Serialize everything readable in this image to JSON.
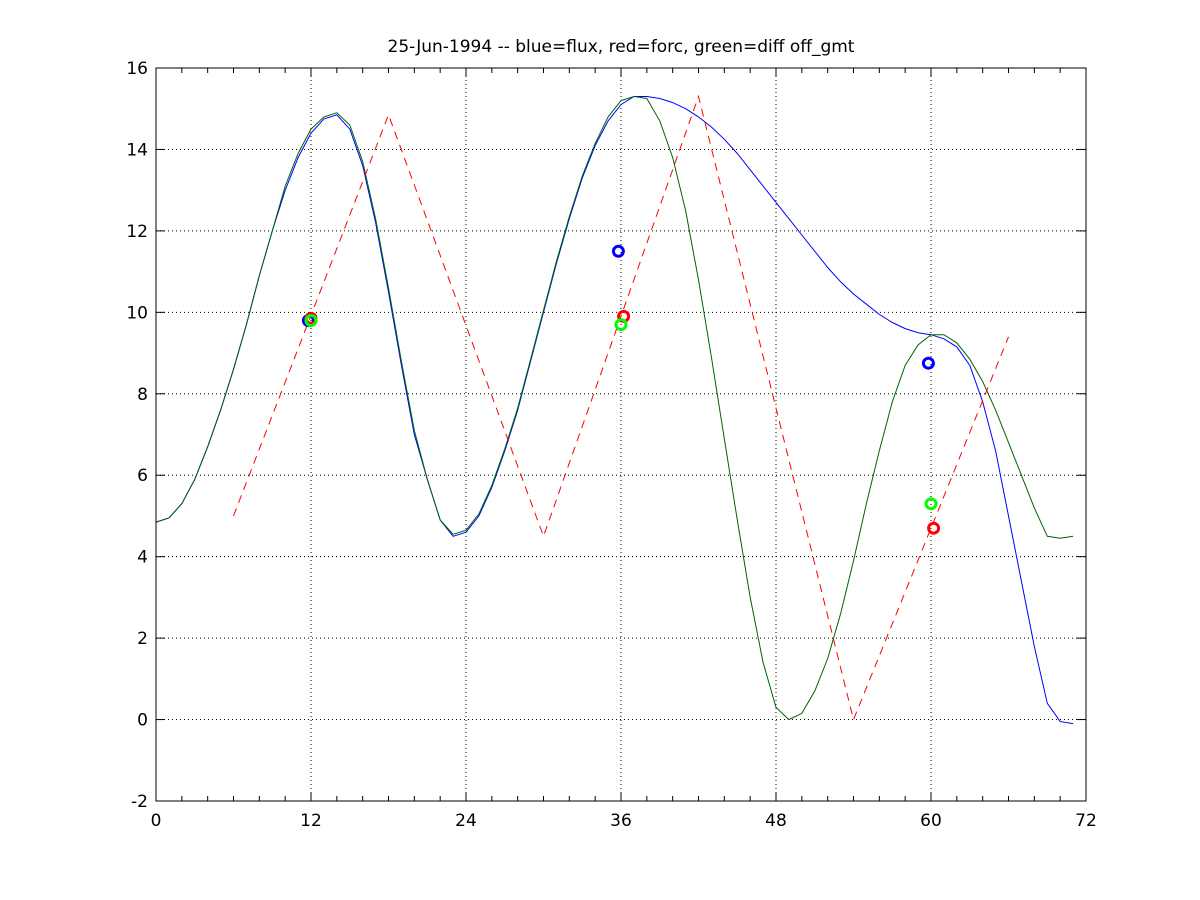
{
  "chart_data": {
    "type": "line",
    "title": "25-Jun-1994 -- blue=flux, red=forc, green=diff off_gmt",
    "xlim": [
      0,
      72
    ],
    "ylim": [
      -2,
      16
    ],
    "xticks": [
      0,
      12,
      24,
      36,
      48,
      60,
      72
    ],
    "yticks": [
      -2,
      0,
      2,
      4,
      6,
      8,
      10,
      12,
      14,
      16
    ],
    "grid": true,
    "series": [
      {
        "name": "flux",
        "color": "#0000ff",
        "style": "solid",
        "x": [
          0,
          1,
          2,
          3,
          4,
          5,
          6,
          7,
          8,
          9,
          10,
          11,
          12,
          13,
          14,
          15,
          16,
          17,
          18,
          19,
          20,
          21,
          22,
          23,
          24,
          25,
          26,
          27,
          28,
          29,
          30,
          31,
          32,
          33,
          34,
          35,
          36,
          37,
          38,
          39,
          40,
          41,
          42,
          43,
          44,
          45,
          46,
          47,
          48,
          49,
          50,
          51,
          52,
          53,
          54,
          55,
          56,
          57,
          58,
          59,
          60,
          61,
          62,
          63,
          64,
          65,
          66,
          67,
          68,
          69,
          70,
          71
        ],
        "y": [
          4.85,
          4.95,
          5.3,
          5.9,
          6.7,
          7.6,
          8.6,
          9.7,
          10.9,
          12.0,
          13.0,
          13.8,
          14.4,
          14.75,
          14.85,
          14.5,
          13.6,
          12.2,
          10.5,
          8.7,
          7.0,
          5.9,
          4.9,
          4.5,
          4.6,
          5.0,
          5.7,
          6.6,
          7.6,
          8.8,
          10.0,
          11.2,
          12.3,
          13.3,
          14.1,
          14.7,
          15.1,
          15.3,
          15.3,
          15.25,
          15.15,
          15.0,
          14.8,
          14.55,
          14.25,
          13.9,
          13.5,
          13.1,
          12.7,
          12.3,
          11.9,
          11.5,
          11.1,
          10.75,
          10.45,
          10.2,
          9.95,
          9.75,
          9.6,
          9.5,
          9.45,
          9.35,
          9.15,
          8.7,
          7.8,
          6.6,
          5.0,
          3.4,
          1.8,
          0.4,
          -0.05,
          -0.1
        ]
      },
      {
        "name": "diff",
        "color": "#006400",
        "style": "solid",
        "x": [
          0,
          1,
          2,
          3,
          4,
          5,
          6,
          7,
          8,
          9,
          10,
          11,
          12,
          13,
          14,
          15,
          16,
          17,
          18,
          19,
          20,
          21,
          22,
          23,
          24,
          25,
          26,
          27,
          28,
          29,
          30,
          31,
          32,
          33,
          34,
          35,
          36,
          37,
          38,
          39,
          40,
          41,
          42,
          43,
          44,
          45,
          46,
          47,
          48,
          49,
          50,
          51,
          52,
          53,
          54,
          55,
          56,
          57,
          58,
          59,
          60,
          61,
          62,
          63,
          64,
          65,
          66,
          67,
          68,
          69,
          70,
          71
        ],
        "y": [
          4.85,
          4.95,
          5.3,
          5.9,
          6.7,
          7.6,
          8.6,
          9.7,
          10.9,
          12.0,
          13.1,
          13.9,
          14.5,
          14.8,
          14.9,
          14.6,
          13.7,
          12.3,
          10.6,
          8.8,
          7.1,
          5.9,
          4.9,
          4.55,
          4.65,
          5.05,
          5.75,
          6.65,
          7.65,
          8.85,
          10.05,
          11.25,
          12.35,
          13.35,
          14.15,
          14.8,
          15.2,
          15.3,
          15.25,
          14.7,
          13.8,
          12.5,
          10.8,
          8.9,
          6.9,
          4.9,
          3.0,
          1.4,
          0.3,
          0.0,
          0.15,
          0.7,
          1.5,
          2.6,
          3.9,
          5.3,
          6.6,
          7.8,
          8.7,
          9.2,
          9.45,
          9.45,
          9.25,
          8.85,
          8.3,
          7.6,
          6.8,
          6.0,
          5.2,
          4.5,
          4.45,
          4.5
        ]
      },
      {
        "name": "forc",
        "color": "#ff0000",
        "style": "dashed",
        "x": [
          6,
          18,
          30,
          42,
          54,
          66
        ],
        "y": [
          5.0,
          14.85,
          4.5,
          15.3,
          0.0,
          9.4
        ]
      }
    ],
    "markers": [
      {
        "series": "flux",
        "x": 11.8,
        "y": 9.8,
        "color": "#0000ff"
      },
      {
        "series": "forc",
        "x": 12.0,
        "y": 9.85,
        "color": "#ff0000"
      },
      {
        "series": "diff",
        "x": 12.0,
        "y": 9.8,
        "color": "#00ff00"
      },
      {
        "series": "flux",
        "x": 35.8,
        "y": 11.5,
        "color": "#0000ff"
      },
      {
        "series": "forc",
        "x": 36.2,
        "y": 9.9,
        "color": "#ff0000"
      },
      {
        "series": "diff",
        "x": 36.0,
        "y": 9.7,
        "color": "#00ff00"
      },
      {
        "series": "flux",
        "x": 59.8,
        "y": 8.75,
        "color": "#0000ff"
      },
      {
        "series": "forc",
        "x": 60.2,
        "y": 4.7,
        "color": "#ff0000"
      },
      {
        "series": "diff",
        "x": 60.0,
        "y": 5.3,
        "color": "#00ff00"
      }
    ]
  }
}
